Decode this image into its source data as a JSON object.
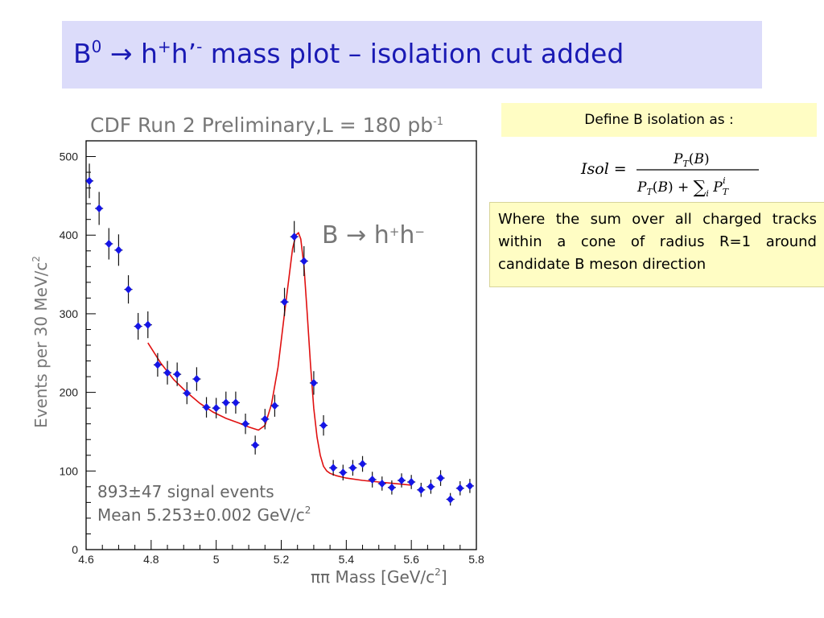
{
  "slide": {
    "title_prefix": "B",
    "title_sup1": "0",
    "title_arrow": " → h",
    "title_sup2": "+",
    "title_mid": "h’",
    "title_sup3": "-",
    "title_suffix": " mass plot – isolation cut added"
  },
  "define_box": {
    "label": "Define B isolation as :"
  },
  "formula": {
    "lhs": "Isol =",
    "numerator": "P_T(B)",
    "denominator": "P_T(B) + Σ_i P_T^i"
  },
  "where_box": {
    "text": "Where the sum over all charged tracks within a cone of radius R=1 around candidate B meson direction"
  },
  "chart_data": {
    "type": "scatter",
    "title": "CDF Run 2 Preliminary,L = 180 pb",
    "title_sup": "-1",
    "xlabel": "ππ Mass [GeV/c",
    "xlabel_sup": "2",
    "xlabel_close": "]",
    "ylabel": "Events per 30 MeV/c",
    "ylabel_sup": "2",
    "xlim": [
      4.6,
      5.8
    ],
    "ylim": [
      0,
      520
    ],
    "x_ticks": [
      4.6,
      4.8,
      5,
      5.2,
      5.4,
      5.6,
      5.8
    ],
    "x_tick_labels": [
      "4.6",
      "4.8",
      "5",
      "5.2",
      "5.4",
      "5.6",
      "5.8"
    ],
    "y_ticks": [
      0,
      100,
      200,
      300,
      400,
      500
    ],
    "y_tick_labels": [
      "0",
      "100",
      "200",
      "300",
      "400",
      "500"
    ],
    "grid": false,
    "series": [
      {
        "kind": "points_with_errors",
        "color": "#1515e6",
        "x": [
          4.61,
          4.64,
          4.67,
          4.7,
          4.73,
          4.76,
          4.79,
          4.82,
          4.85,
          4.88,
          4.91,
          4.94,
          4.97,
          5.0,
          5.03,
          5.06,
          5.09,
          5.12,
          5.15,
          5.18,
          5.21,
          5.24,
          5.27,
          5.3,
          5.33,
          5.36,
          5.39,
          5.42,
          5.45,
          5.48,
          5.51,
          5.54,
          5.57,
          5.6,
          5.63,
          5.66,
          5.69,
          5.72,
          5.75,
          5.78
        ],
        "y": [
          469,
          434,
          389,
          381,
          331,
          284,
          286,
          235,
          225,
          223,
          199,
          217,
          181,
          180,
          187,
          187,
          160,
          133,
          166,
          183,
          315,
          398,
          367,
          212,
          158,
          104,
          98,
          104,
          109,
          89,
          84,
          79,
          88,
          86,
          76,
          80,
          91,
          64,
          78,
          81
        ],
        "err": [
          22,
          21,
          20,
          20,
          18,
          17,
          17,
          15,
          15,
          15,
          14,
          15,
          13,
          13,
          14,
          14,
          13,
          12,
          13,
          14,
          18,
          20,
          19,
          15,
          13,
          10,
          10,
          10,
          10,
          10,
          9,
          9,
          9,
          9,
          9,
          9,
          10,
          8,
          9,
          9
        ]
      },
      {
        "kind": "fit_line",
        "color": "#e01010",
        "x": [
          4.79,
          4.83,
          4.87,
          4.91,
          4.95,
          4.99,
          5.03,
          5.07,
          5.1,
          5.13,
          5.15,
          5.17,
          5.19,
          5.21,
          5.225,
          5.235,
          5.245,
          5.253,
          5.26,
          5.27,
          5.28,
          5.29,
          5.3,
          5.31,
          5.32,
          5.33,
          5.34,
          5.35,
          5.37,
          5.4,
          5.45,
          5.5,
          5.55,
          5.6
        ],
        "y": [
          263,
          237,
          216,
          200,
          186,
          175,
          167,
          161,
          156,
          152,
          158,
          185,
          232,
          300,
          350,
          383,
          400,
          403,
          395,
          360,
          300,
          235,
          180,
          143,
          120,
          106,
          100,
          97,
          94,
          91,
          88,
          86,
          84,
          82
        ]
      }
    ],
    "annotations": {
      "decay": "B → h",
      "decay_sup1": "+",
      "decay_mid": "h",
      "decay_sup2": "−",
      "signal_line": "893±47 signal events",
      "mean_line": "Mean 5.253±0.002 GeV/c",
      "mean_sup": "2"
    }
  }
}
